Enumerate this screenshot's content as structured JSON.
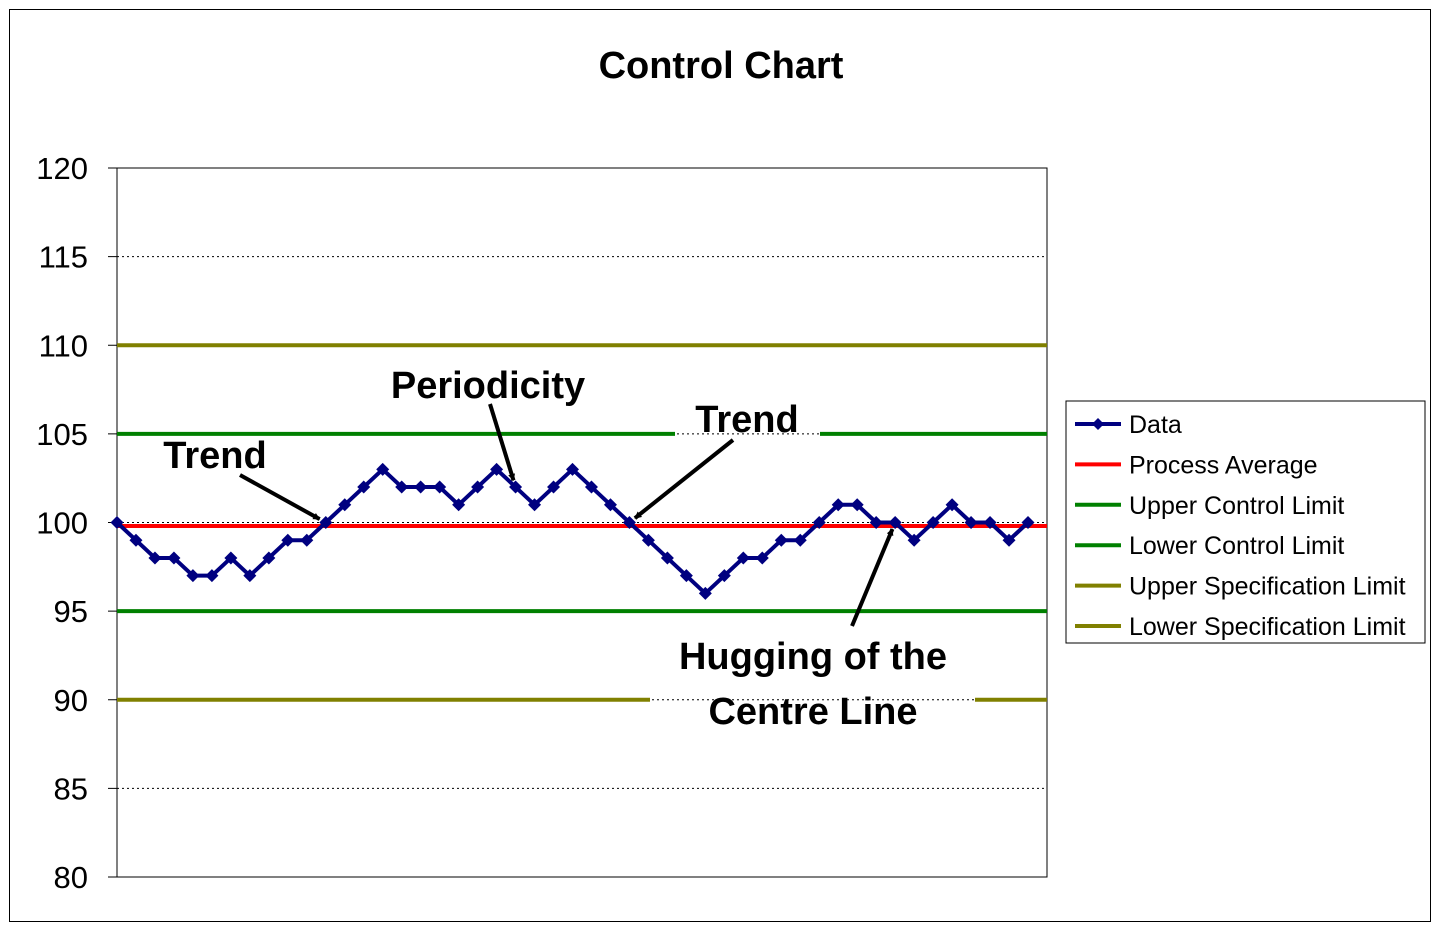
{
  "chart_data": {
    "type": "line",
    "title": "Control Chart",
    "xlabel": "",
    "ylabel": "",
    "ylim": [
      80,
      120
    ],
    "yticks": [
      "80",
      "85",
      "90",
      "95",
      "100",
      "105",
      "110",
      "115",
      "120"
    ],
    "series": [
      {
        "name": "Data",
        "color": "#000080",
        "marker": "diamond",
        "values": [
          100,
          99,
          98,
          98,
          97,
          97,
          98,
          97,
          98,
          99,
          99,
          100,
          101,
          102,
          103,
          102,
          102,
          102,
          101,
          102,
          103,
          102,
          101,
          102,
          103,
          102,
          101,
          100,
          99,
          98,
          97,
          96,
          97,
          98,
          98,
          99,
          99,
          100,
          101,
          101,
          100,
          100,
          99,
          100,
          101,
          100,
          100,
          99,
          100
        ]
      },
      {
        "name": "Process Average",
        "color": "#ff0000",
        "value": 99.8
      },
      {
        "name": "Upper Control Limit",
        "color": "#008000",
        "value": 105
      },
      {
        "name": "Lower Control Limit",
        "color": "#008000",
        "value": 95
      },
      {
        "name": "Upper Specification Limit",
        "color": "#808000",
        "value": 110
      },
      {
        "name": "Lower Specification Limit",
        "color": "#808000",
        "value": 90
      }
    ],
    "annotations": [
      {
        "lines": [
          "Trend"
        ],
        "arrow_to_point": 11
      },
      {
        "lines": [
          "Periodicity"
        ],
        "arrow_to_point": 21
      },
      {
        "lines": [
          "Trend"
        ],
        "arrow_to_point": 27
      },
      {
        "lines": [
          "Hugging of the",
          "Centre Line"
        ],
        "arrow_to_point": 41
      }
    ],
    "grid": "horizontal dotted",
    "legend": "right"
  }
}
